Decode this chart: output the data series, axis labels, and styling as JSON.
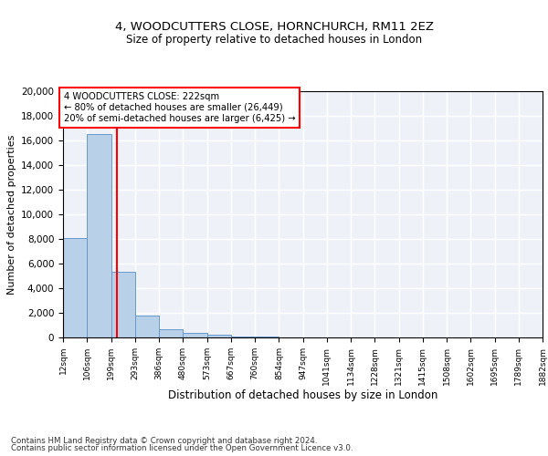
{
  "title1": "4, WOODCUTTERS CLOSE, HORNCHURCH, RM11 2EZ",
  "title2": "Size of property relative to detached houses in London",
  "xlabel": "Distribution of detached houses by size in London",
  "ylabel": "Number of detached properties",
  "bar_edges": [
    12,
    106,
    199,
    293,
    386,
    480,
    573,
    667,
    760,
    854,
    947,
    1041,
    1134,
    1228,
    1321,
    1415,
    1508,
    1602,
    1695,
    1789,
    1882
  ],
  "bar_heights": [
    8100,
    16500,
    5300,
    1800,
    700,
    350,
    200,
    100,
    60,
    35,
    20,
    12,
    8,
    5,
    4,
    3,
    2,
    1.5,
    1,
    0.8
  ],
  "bar_color": "#b8d0e8",
  "bar_edge_color": "#6699cc",
  "vline_x": 222,
  "vline_color": "red",
  "annotation_text": "4 WOODCUTTERS CLOSE: 222sqm\n← 80% of detached houses are smaller (26,449)\n20% of semi-detached houses are larger (6,425) →",
  "ylim": [
    0,
    20000
  ],
  "yticks": [
    0,
    2000,
    4000,
    6000,
    8000,
    10000,
    12000,
    14000,
    16000,
    18000,
    20000
  ],
  "tick_labels": [
    "12sqm",
    "106sqm",
    "199sqm",
    "293sqm",
    "386sqm",
    "480sqm",
    "573sqm",
    "667sqm",
    "760sqm",
    "854sqm",
    "947sqm",
    "1041sqm",
    "1134sqm",
    "1228sqm",
    "1321sqm",
    "1415sqm",
    "1508sqm",
    "1602sqm",
    "1695sqm",
    "1789sqm",
    "1882sqm"
  ],
  "footer1": "Contains HM Land Registry data © Crown copyright and database right 2024.",
  "footer2": "Contains public sector information licensed under the Open Government Licence v3.0.",
  "bg_color": "#eef2f8",
  "grid_color": "#ffffff"
}
